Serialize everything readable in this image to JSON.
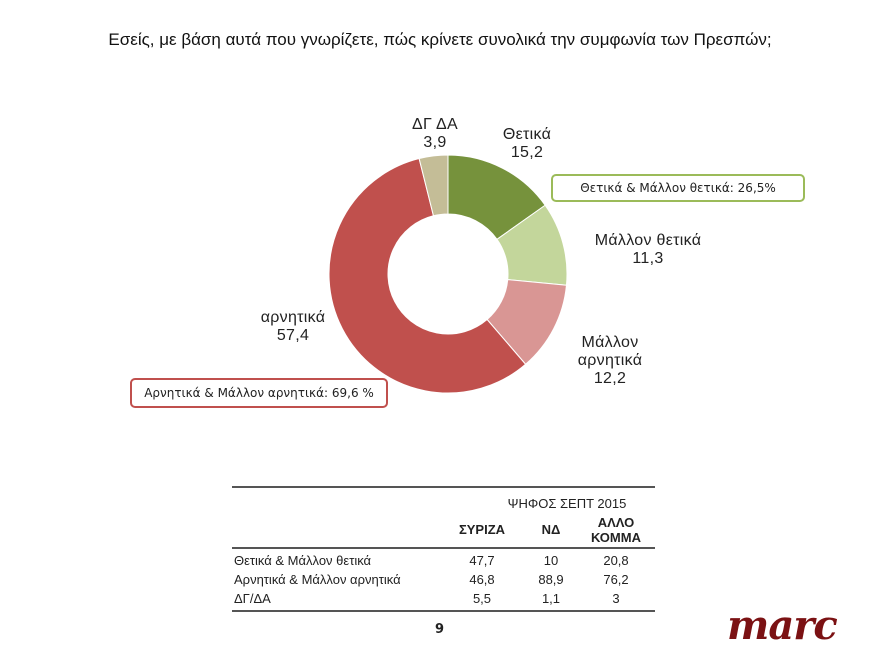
{
  "title": "Εσείς, με βάση αυτά που γνωρίζετε, πώς κρίνετε συνολικά την συμφωνία των Πρεσπών;",
  "chart_data": [
    {
      "type": "pie",
      "variant": "donut",
      "title": "Εσείς, με βάση αυτά που γνωρίζετε, πώς κρίνετε συνολικά την συμφωνία των Πρεσπών;",
      "categories": [
        "Θετικά",
        "Μάλλον θετικά",
        "Μάλλον αρνητικά",
        "αρνητικά",
        "ΔΓ ΔΑ"
      ],
      "values": [
        15.2,
        11.3,
        12.2,
        57.4,
        3.9
      ],
      "colors": [
        "#76923c",
        "#c3d69b",
        "#d99694",
        "#c0504d",
        "#c4bd97"
      ],
      "start_angle": "12 o'clock, clockwise",
      "annotations": [
        "Θετικά & Μάλλον θετικά: 26,5%",
        "Αρνητικά & Μάλλον αρνητικά: 69,6 %"
      ]
    },
    {
      "type": "table",
      "group_header": "ΨΗΦΟΣ ΣΕΠΤ 2015",
      "columns": [
        "",
        "ΣΥΡΙΖΑ",
        "ΝΔ",
        "ΑΛΛΟ ΚΟΜΜΑ"
      ],
      "rows": [
        [
          "Θετικά & Μάλλον θετικά",
          47.7,
          10,
          20.8
        ],
        [
          "Αρνητικά & Μάλλον αρνητικά",
          46.8,
          88.9,
          76.2
        ],
        [
          "ΔΓ/ΔΑ",
          5.5,
          1.1,
          3
        ]
      ]
    }
  ],
  "labels": {
    "pos": {
      "name": "Θετικά",
      "value": "15,2"
    },
    "mpos": {
      "name": "Μάλλον θετικά",
      "value": "11,3"
    },
    "mneg": {
      "name1": "Μάλλον",
      "name2": "αρνητικά",
      "value": "12,2"
    },
    "neg": {
      "name": "αρνητικά",
      "value": "57,4"
    },
    "dk": {
      "name": "ΔΓ ΔΑ",
      "value": "3,9"
    }
  },
  "callouts": {
    "positive": "Θετικά & Μάλλον θετικά: 26,5%",
    "negative": "Αρνητικά & Μάλλον αρνητικά: 69,6 %"
  },
  "table": {
    "group_header": "ΨΗΦΟΣ ΣΕΠΤ 2015",
    "headers": [
      "ΣΥΡΙΖΑ",
      "ΝΔ",
      "ΑΛΛΟ",
      "ΚΟΜΜΑ"
    ],
    "rows": [
      {
        "label": "Θετικά & Μάλλον θετικά",
        "syriza": "47,7",
        "nd": "10",
        "other": "20,8"
      },
      {
        "label": "Αρνητικά & Μάλλον αρνητικά",
        "syriza": "46,8",
        "nd": "88,9",
        "other": "76,2"
      },
      {
        "label": "ΔΓ/ΔΑ",
        "syriza": "5,5",
        "nd": "1,1",
        "other": "3"
      }
    ]
  },
  "footer": {
    "page_number": "9",
    "logo": "marc"
  }
}
